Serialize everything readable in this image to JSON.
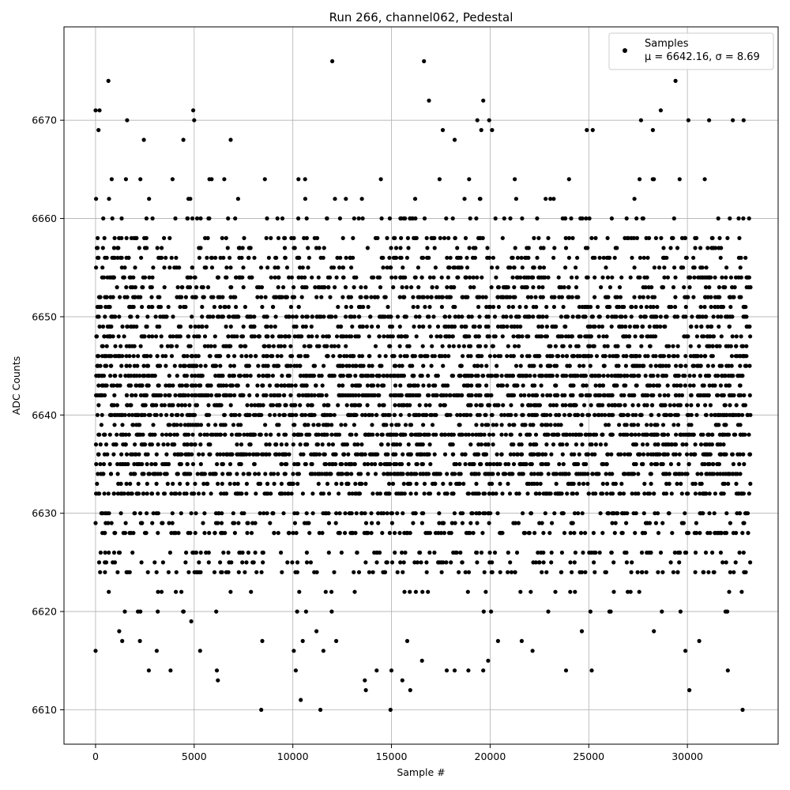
{
  "chart_data": {
    "type": "scatter",
    "title": "Run 266, channel062, Pedestal",
    "xlabel": "Sample #",
    "ylabel": "ADC Counts",
    "xlim": [
      -1600,
      34600
    ],
    "ylim": [
      6606.5,
      6679.5
    ],
    "xticks": [
      0,
      5000,
      10000,
      15000,
      20000,
      25000,
      30000
    ],
    "yticks": [
      6610,
      6620,
      6630,
      6640,
      6650,
      6660,
      6670
    ],
    "grid": true,
    "legend_position": "top-right",
    "series": [
      {
        "name": "Samples",
        "color": "#000000",
        "marker": "circle",
        "x_range": [
          0,
          33200
        ],
        "sample_count": 33200,
        "dense_band": [
          6624,
          6660
        ],
        "value_weights": {
          "6620": 1,
          "6622": 2,
          "6624": 6,
          "6625": 4,
          "6626": 7,
          "6628": 10,
          "6629": 8,
          "6630": 12,
          "6632": 16,
          "6633": 10,
          "6634": 18,
          "6635": 14,
          "6636": 20,
          "6637": 12,
          "6638": 20,
          "6639": 12,
          "6640": 22,
          "6641": 14,
          "6642": 22,
          "6643": 16,
          "6644": 22,
          "6645": 14,
          "6646": 20,
          "6647": 12,
          "6648": 18,
          "6649": 12,
          "6650": 16,
          "6651": 10,
          "6652": 14,
          "6653": 9,
          "6654": 12,
          "6655": 6,
          "6656": 9,
          "6657": 5,
          "6658": 7,
          "6660": 5,
          "6662": 2,
          "6664": 2
        },
        "outliers": [
          [
            0,
            6671
          ],
          [
            150,
            6669
          ],
          [
            200,
            6671
          ],
          [
            650,
            6674
          ],
          [
            1600,
            6670
          ],
          [
            2450,
            6668
          ],
          [
            4450,
            6668
          ],
          [
            4950,
            6671
          ],
          [
            5000,
            6670
          ],
          [
            6850,
            6668
          ],
          [
            12000,
            6676
          ],
          [
            16650,
            6676
          ],
          [
            16900,
            6672
          ],
          [
            17600,
            6669
          ],
          [
            18200,
            6668
          ],
          [
            19350,
            6670
          ],
          [
            19550,
            6669
          ],
          [
            19650,
            6672
          ],
          [
            19950,
            6670
          ],
          [
            20100,
            6669
          ],
          [
            24900,
            6669
          ],
          [
            25200,
            6669
          ],
          [
            27650,
            6670
          ],
          [
            28250,
            6669
          ],
          [
            28650,
            6671
          ],
          [
            29400,
            6674
          ],
          [
            30050,
            6670
          ],
          [
            31100,
            6670
          ],
          [
            32300,
            6670
          ],
          [
            32850,
            6670
          ],
          [
            0,
            6616
          ],
          [
            1200,
            6618
          ],
          [
            1350,
            6617
          ],
          [
            2250,
            6617
          ],
          [
            2700,
            6614
          ],
          [
            3100,
            6616
          ],
          [
            3800,
            6614
          ],
          [
            4850,
            6619
          ],
          [
            5300,
            6616
          ],
          [
            6150,
            6614
          ],
          [
            6200,
            6613
          ],
          [
            8400,
            6610
          ],
          [
            8450,
            6617
          ],
          [
            10050,
            6616
          ],
          [
            10150,
            6614
          ],
          [
            10400,
            6611
          ],
          [
            10500,
            6617
          ],
          [
            11200,
            6618
          ],
          [
            11400,
            6610
          ],
          [
            11550,
            6616
          ],
          [
            12200,
            6617
          ],
          [
            13650,
            6613
          ],
          [
            13700,
            6612
          ],
          [
            14250,
            6614
          ],
          [
            14950,
            6610
          ],
          [
            15000,
            6614
          ],
          [
            15550,
            6613
          ],
          [
            15800,
            6617
          ],
          [
            15950,
            6612
          ],
          [
            16550,
            6615
          ],
          [
            17800,
            6614
          ],
          [
            18200,
            6614
          ],
          [
            18900,
            6614
          ],
          [
            19650,
            6614
          ],
          [
            19900,
            6615
          ],
          [
            20400,
            6617
          ],
          [
            21600,
            6617
          ],
          [
            22150,
            6616
          ],
          [
            23850,
            6614
          ],
          [
            24650,
            6618
          ],
          [
            25150,
            6614
          ],
          [
            28300,
            6618
          ],
          [
            29900,
            6616
          ],
          [
            30100,
            6612
          ],
          [
            30600,
            6617
          ],
          [
            32050,
            6614
          ],
          [
            32800,
            6610
          ]
        ]
      }
    ],
    "legend": {
      "label": "Samples",
      "stats": "μ = 6642.16, σ = 8.69"
    }
  }
}
